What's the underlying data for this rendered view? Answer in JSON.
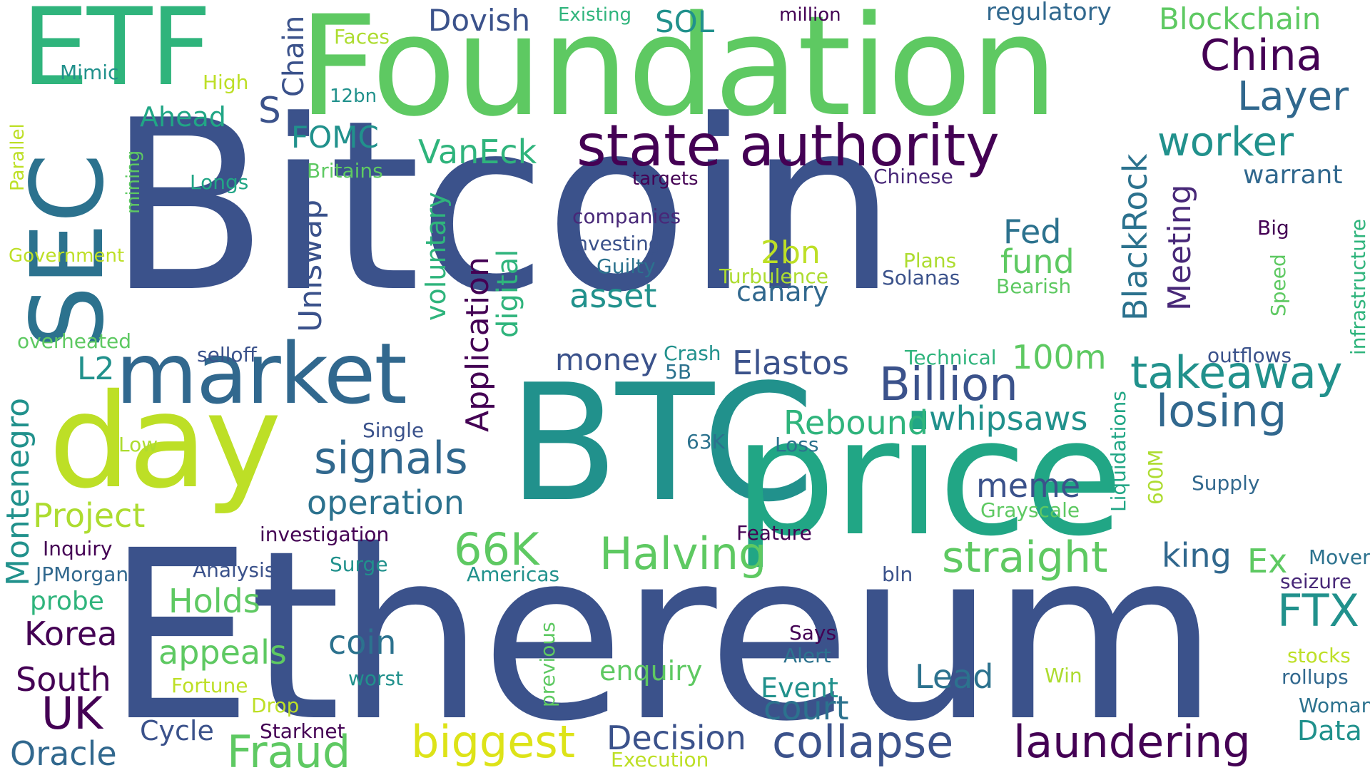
{
  "words": [
    {
      "text": "Bitcoin",
      "color": "#3b528b"
    },
    {
      "text": "Foundation",
      "color": "#5ec962"
    },
    {
      "text": "Ethereum",
      "color": "#3b528b"
    },
    {
      "text": "BTC",
      "color": "#21918c"
    },
    {
      "text": "price",
      "color": "#21a685"
    },
    {
      "text": "ETF",
      "color": "#2fb47c"
    },
    {
      "text": "SEC",
      "color": "#2c728e"
    },
    {
      "text": "market",
      "color": "#31688e"
    },
    {
      "text": "day",
      "color": "#bddf26"
    },
    {
      "text": "state authority",
      "color": "#440154"
    },
    {
      "text": "China",
      "color": "#440154"
    },
    {
      "text": "Layer",
      "color": "#31688e"
    },
    {
      "text": "worker",
      "color": "#21918c"
    },
    {
      "text": "Blockchain",
      "color": "#5ec962"
    },
    {
      "text": "regulatory",
      "color": "#31688e"
    },
    {
      "text": "Dovish",
      "color": "#3b528b"
    },
    {
      "text": "SOL",
      "color": "#21918c"
    },
    {
      "text": "Existing",
      "color": "#2fb47c"
    },
    {
      "text": "million",
      "color": "#440154"
    },
    {
      "text": "Faces",
      "color": "#addc30"
    },
    {
      "text": "Chain",
      "color": "#3b528b"
    },
    {
      "text": "Mimic",
      "color": "#21918c"
    },
    {
      "text": "High",
      "color": "#bddf26"
    },
    {
      "text": "12bn",
      "color": "#21918c"
    },
    {
      "text": "Ahead",
      "color": "#21a685"
    },
    {
      "text": "FOMC",
      "color": "#21918c"
    },
    {
      "text": "S",
      "color": "#3b528b"
    },
    {
      "text": "VanEck",
      "color": "#2fb47c"
    },
    {
      "text": "Parallel",
      "color": "#bddf26"
    },
    {
      "text": "mining",
      "color": "#5ec962"
    },
    {
      "text": "Britains",
      "color": "#5ec962"
    },
    {
      "text": "Longs",
      "color": "#21a685"
    },
    {
      "text": "Government",
      "color": "#bddf26"
    },
    {
      "text": "targets",
      "color": "#440154"
    },
    {
      "text": "companies",
      "color": "#482878"
    },
    {
      "text": "Investing",
      "color": "#3b528b"
    },
    {
      "text": "Guilty",
      "color": "#2c728e"
    },
    {
      "text": "2bn",
      "color": "#bddf26"
    },
    {
      "text": "Turbulence",
      "color": "#addc30"
    },
    {
      "text": "asset",
      "color": "#21918c"
    },
    {
      "text": "canary",
      "color": "#31688e"
    },
    {
      "text": "Fed",
      "color": "#2c728e"
    },
    {
      "text": "fund",
      "color": "#5ec962"
    },
    {
      "text": "Plans",
      "color": "#addc30"
    },
    {
      "text": "Solanas",
      "color": "#3b528b"
    },
    {
      "text": "Bearish",
      "color": "#5ec962"
    },
    {
      "text": "Chinese",
      "color": "#482878"
    },
    {
      "text": "warrant",
      "color": "#31688e"
    },
    {
      "text": "Big",
      "color": "#440154"
    },
    {
      "text": "Speed",
      "color": "#5ec962"
    },
    {
      "text": "infrastructure",
      "color": "#2fb47c"
    },
    {
      "text": "Uniswap",
      "color": "#3b528b"
    },
    {
      "text": "voluntary",
      "color": "#2fb47c"
    },
    {
      "text": "Application",
      "color": "#440154"
    },
    {
      "text": "digital",
      "color": "#2fb47c"
    },
    {
      "text": "BlackRock",
      "color": "#2c728e"
    },
    {
      "text": "Meeting",
      "color": "#482878"
    },
    {
      "text": "overheated",
      "color": "#5ec962"
    },
    {
      "text": "selloff",
      "color": "#3b528b"
    },
    {
      "text": "L2",
      "color": "#21918c"
    },
    {
      "text": "money",
      "color": "#3b528b"
    },
    {
      "text": "Crash",
      "color": "#21918c"
    },
    {
      "text": "5B",
      "color": "#2c728e"
    },
    {
      "text": "Elastos",
      "color": "#3b528b"
    },
    {
      "text": "Technical",
      "color": "#2fb47c"
    },
    {
      "text": "100m",
      "color": "#5ec962"
    },
    {
      "text": "outflows",
      "color": "#3b528b"
    },
    {
      "text": "takeaway",
      "color": "#21918c"
    },
    {
      "text": "Billion",
      "color": "#3b528b"
    },
    {
      "text": "losing",
      "color": "#31688e"
    },
    {
      "text": "Rebound",
      "color": "#2fb47c"
    },
    {
      "text": "whipsaws",
      "color": "#21918c"
    },
    {
      "text": "signals",
      "color": "#31688e"
    },
    {
      "text": "Single",
      "color": "#3b528b"
    },
    {
      "text": "Montenegro",
      "color": "#21918c"
    },
    {
      "text": "Low",
      "color": "#addc30"
    },
    {
      "text": "63K",
      "color": "#2c728e"
    },
    {
      "text": "Loss",
      "color": "#2c728e"
    },
    {
      "text": "Liquidations",
      "color": "#21a685"
    },
    {
      "text": "600M",
      "color": "#addc30"
    },
    {
      "text": "Supply",
      "color": "#31688e"
    },
    {
      "text": "meme",
      "color": "#3b528b"
    },
    {
      "text": "Grayscale",
      "color": "#5ec962"
    },
    {
      "text": "operation",
      "color": "#2c728e"
    },
    {
      "text": "Project",
      "color": "#addc30"
    },
    {
      "text": "investigation",
      "color": "#440154"
    },
    {
      "text": "Feature",
      "color": "#440154"
    },
    {
      "text": "66K",
      "color": "#5ec962"
    },
    {
      "text": "Halving",
      "color": "#5ec962"
    },
    {
      "text": "straight",
      "color": "#5ec962"
    },
    {
      "text": "king",
      "color": "#31688e"
    },
    {
      "text": "Ex",
      "color": "#5ec962"
    },
    {
      "text": "Mover",
      "color": "#2c728e"
    },
    {
      "text": "seizure",
      "color": "#482878"
    },
    {
      "text": "FTX",
      "color": "#21918c"
    },
    {
      "text": "Inquiry",
      "color": "#440154"
    },
    {
      "text": "JPMorgan",
      "color": "#31688e"
    },
    {
      "text": "Analysis",
      "color": "#3b528b"
    },
    {
      "text": "Surge",
      "color": "#21918c"
    },
    {
      "text": "Americas",
      "color": "#21918c"
    },
    {
      "text": "bln",
      "color": "#3b528b"
    },
    {
      "text": "probe",
      "color": "#2fb47c"
    },
    {
      "text": "Holds",
      "color": "#5ec962"
    },
    {
      "text": "Korea",
      "color": "#440154"
    },
    {
      "text": "appeals",
      "color": "#5ec962"
    },
    {
      "text": "coin",
      "color": "#2c728e"
    },
    {
      "text": "previous",
      "color": "#5ec962"
    },
    {
      "text": "Says",
      "color": "#440154"
    },
    {
      "text": "Alert",
      "color": "#2c728e"
    },
    {
      "text": "enquiry",
      "color": "#5ec962"
    },
    {
      "text": "Lead",
      "color": "#2c728e"
    },
    {
      "text": "stocks",
      "color": "#bddf26"
    },
    {
      "text": "rollups",
      "color": "#31688e"
    },
    {
      "text": "South",
      "color": "#440154"
    },
    {
      "text": "Fortune",
      "color": "#bddf26"
    },
    {
      "text": "worst",
      "color": "#21918c"
    },
    {
      "text": "Win",
      "color": "#addc30"
    },
    {
      "text": "Event",
      "color": "#21918c"
    },
    {
      "text": "court",
      "color": "#2c728e"
    },
    {
      "text": "Woman",
      "color": "#2c728e"
    },
    {
      "text": "UK",
      "color": "#440154"
    },
    {
      "text": "Drop",
      "color": "#bddf26"
    },
    {
      "text": "Cycle",
      "color": "#3b528b"
    },
    {
      "text": "Starknet",
      "color": "#440154"
    },
    {
      "text": "Data",
      "color": "#21918c"
    },
    {
      "text": "Fraud",
      "color": "#5ec962"
    },
    {
      "text": "biggest",
      "color": "#dde318"
    },
    {
      "text": "Decision",
      "color": "#3b528b"
    },
    {
      "text": "collapse",
      "color": "#3b528b"
    },
    {
      "text": "laundering",
      "color": "#440154"
    },
    {
      "text": "Oracle",
      "color": "#31688e"
    },
    {
      "text": "Execution",
      "color": "#bddf26"
    }
  ]
}
